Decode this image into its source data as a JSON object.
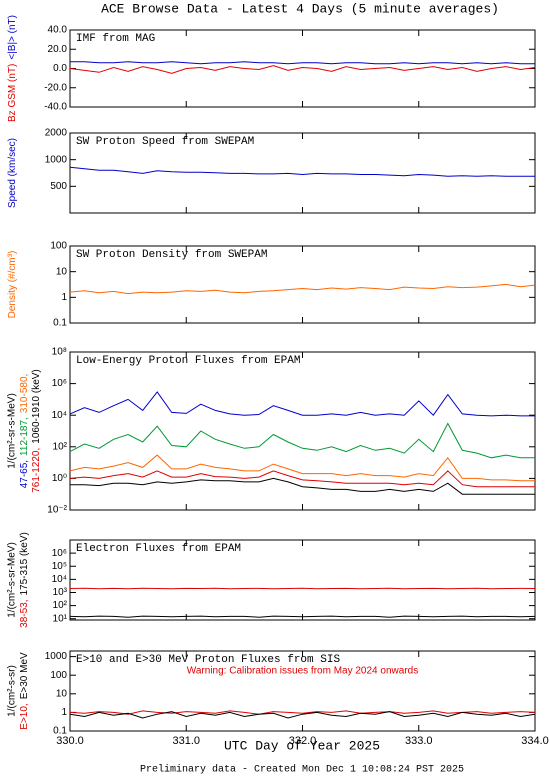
{
  "title": "ACE Browse Data - Latest 4 Days (5 minute averages)",
  "xlabel": "UTC Day of Year 2025",
  "footer": "Preliminary data - Created Mon Dec  1 10:08:24 PST 2025",
  "chart_data": [
    {
      "type": "line",
      "title": "IMF from MAG",
      "x": [
        330.0,
        330.125,
        330.25,
        330.375,
        330.5,
        330.625,
        330.75,
        330.875,
        331.0,
        331.125,
        331.25,
        331.375,
        331.5,
        331.625,
        331.75,
        331.875,
        332.0,
        332.125,
        332.25,
        332.375,
        332.5,
        332.625,
        332.75,
        332.875,
        333.0,
        333.125,
        333.25,
        333.375,
        333.5,
        333.625,
        333.75,
        333.875,
        334.0
      ],
      "series": [
        {
          "name": "Bz GSM (nT)",
          "color": "#e00000",
          "values": [
            0,
            -2,
            -4,
            1,
            -3,
            2,
            -1,
            -5,
            0,
            1,
            -2,
            2,
            0,
            -1,
            3,
            -2,
            1,
            0,
            -3,
            2,
            -1,
            0,
            1,
            -2,
            0,
            2,
            -1,
            1,
            -3,
            0,
            2,
            -1,
            1
          ]
        },
        {
          "name": "<|B|> (nT)",
          "color": "#0000cc",
          "values": [
            7,
            7,
            6,
            6,
            7,
            6,
            6,
            7,
            6,
            5,
            6,
            6,
            7,
            6,
            6,
            5,
            6,
            6,
            5,
            6,
            6,
            5,
            5,
            6,
            5,
            6,
            6,
            5,
            6,
            5,
            6,
            5,
            5
          ]
        }
      ],
      "log": false,
      "ylim": [
        -40,
        40
      ],
      "yticks": [
        {
          "value": -40,
          "label": "-40.0"
        },
        {
          "value": -20,
          "label": "-20.0"
        },
        {
          "value": 0,
          "label": "0.0"
        },
        {
          "value": 20,
          "label": "20.0"
        },
        {
          "value": 40,
          "label": "40.0"
        }
      ]
    },
    {
      "type": "line",
      "title": "SW Proton Speed from SWEPAM",
      "x": [
        330.0,
        330.125,
        330.25,
        330.375,
        330.5,
        330.625,
        330.75,
        330.875,
        331.0,
        331.125,
        331.25,
        331.375,
        331.5,
        331.625,
        331.75,
        331.875,
        332.0,
        332.125,
        332.25,
        332.375,
        332.5,
        332.625,
        332.75,
        332.875,
        333.0,
        333.125,
        333.25,
        333.375,
        333.5,
        333.625,
        333.75,
        333.875,
        334.0
      ],
      "series": [
        {
          "name": "Speed (km/sec)",
          "color": "#0000cc",
          "values": [
            820,
            790,
            760,
            760,
            730,
            700,
            750,
            730,
            720,
            720,
            710,
            700,
            700,
            690,
            690,
            700,
            680,
            700,
            690,
            690,
            680,
            680,
            670,
            660,
            680,
            670,
            650,
            660,
            650,
            660,
            650,
            650,
            650
          ]
        }
      ],
      "log": true,
      "ylim": [
        250,
        2000
      ],
      "yticks": [
        500,
        1000,
        2000
      ]
    },
    {
      "type": "line",
      "title": "SW Proton Density from SWEPAM",
      "x": [
        330.0,
        330.125,
        330.25,
        330.375,
        330.5,
        330.625,
        330.75,
        330.875,
        331.0,
        331.125,
        331.25,
        331.375,
        331.5,
        331.625,
        331.75,
        331.875,
        332.0,
        332.125,
        332.25,
        332.375,
        332.5,
        332.625,
        332.75,
        332.875,
        333.0,
        333.125,
        333.25,
        333.375,
        333.5,
        333.625,
        333.75,
        333.875,
        334.0
      ],
      "series": [
        {
          "name": "Density (#/cm³)",
          "color": "#ff6600",
          "values": [
            1.6,
            1.8,
            1.5,
            1.7,
            1.4,
            1.6,
            1.5,
            1.6,
            1.8,
            1.7,
            1.9,
            1.6,
            1.5,
            1.7,
            1.8,
            2.0,
            2.2,
            2.0,
            2.3,
            2.1,
            2.4,
            2.2,
            2.0,
            2.5,
            2.3,
            2.2,
            2.6,
            2.4,
            2.5,
            2.8,
            3.2,
            2.6,
            3.0
          ]
        }
      ],
      "log": true,
      "ylim": [
        0.1,
        100
      ],
      "yticks": [
        0.1,
        1,
        10,
        100
      ]
    },
    {
      "type": "line",
      "title": "Low-Energy Proton Fluxes from EPAM",
      "ylabel": "1/(cm²-sr-s-MeV)",
      "x": [
        330.0,
        330.125,
        330.25,
        330.375,
        330.5,
        330.625,
        330.75,
        330.875,
        331.0,
        331.125,
        331.25,
        331.375,
        331.5,
        331.625,
        331.75,
        331.875,
        332.0,
        332.125,
        332.25,
        332.375,
        332.5,
        332.625,
        332.75,
        332.875,
        333.0,
        333.125,
        333.25,
        333.375,
        333.5,
        333.625,
        333.75,
        333.875,
        334.0
      ],
      "series": [
        {
          "name": "47-65,",
          "color": "#0000cc",
          "values": [
            12000,
            30000,
            15000,
            40000,
            100000,
            20000,
            300000,
            15000,
            13000,
            50000,
            20000,
            12000,
            10000,
            11000,
            40000,
            20000,
            10000,
            10000,
            12000,
            10000,
            15000,
            10000,
            12000,
            10000,
            80000,
            10000,
            200000,
            12000,
            10000,
            9000,
            10000,
            9000,
            9000
          ]
        },
        {
          "name": "112-187,",
          "color": "#009933",
          "values": [
            50,
            150,
            80,
            300,
            600,
            200,
            2000,
            120,
            100,
            1000,
            300,
            150,
            80,
            100,
            600,
            200,
            80,
            60,
            100,
            50,
            120,
            60,
            80,
            40,
            300,
            50,
            3000,
            60,
            40,
            20,
            30,
            20,
            20
          ]
        },
        {
          "name": "310-580,",
          "color": "#ff6600",
          "values": [
            3,
            5,
            4,
            6,
            10,
            5,
            30,
            4,
            4,
            8,
            5,
            4,
            3,
            3,
            8,
            4,
            2,
            2,
            2,
            1.5,
            2,
            1.5,
            1.5,
            1.2,
            2,
            1.5,
            20,
            1,
            1,
            0.8,
            0.8,
            0.7,
            0.7
          ]
        },
        {
          "name": "761-1220,",
          "color": "#e00000",
          "values": [
            1,
            1.2,
            1,
            1.5,
            2,
            1.2,
            3,
            1.2,
            1.2,
            2,
            1.3,
            1.2,
            1,
            1.2,
            3,
            1.5,
            0.8,
            0.7,
            0.6,
            0.5,
            0.5,
            0.5,
            0.5,
            0.4,
            0.5,
            0.4,
            3,
            0.4,
            0.3,
            0.3,
            0.3,
            0.3,
            0.3
          ]
        },
        {
          "name": "1060-1910 (keV)",
          "color": "#000000",
          "values": [
            0.4,
            0.4,
            0.35,
            0.5,
            0.5,
            0.4,
            0.6,
            0.5,
            0.6,
            0.8,
            0.7,
            0.7,
            0.6,
            0.6,
            1.0,
            0.6,
            0.3,
            0.25,
            0.2,
            0.2,
            0.15,
            0.15,
            0.2,
            0.15,
            0.2,
            0.15,
            0.5,
            0.1,
            0.1,
            0.1,
            0.1,
            0.1,
            0.1
          ]
        }
      ],
      "log": true,
      "ylim": [
        0.01,
        100000000
      ],
      "yticks": [
        {
          "value": 0.01,
          "label": "10⁻²"
        },
        {
          "value": 1,
          "label": "10⁰"
        },
        {
          "value": 100,
          "label": "10²"
        },
        {
          "value": 10000,
          "label": "10⁴"
        },
        {
          "value": 1000000,
          "label": "10⁶"
        },
        {
          "value": 100000000,
          "label": "10⁸"
        }
      ]
    },
    {
      "type": "line",
      "title": "Electron Fluxes from EPAM",
      "ylabel": "1/(cm²-s-sr-MeV)",
      "x": [
        330.0,
        330.125,
        330.25,
        330.375,
        330.5,
        330.625,
        330.75,
        330.875,
        331.0,
        331.125,
        331.25,
        331.375,
        331.5,
        331.625,
        331.75,
        331.875,
        332.0,
        332.125,
        332.25,
        332.375,
        332.5,
        332.625,
        332.75,
        332.875,
        333.0,
        333.125,
        333.25,
        333.375,
        333.5,
        333.625,
        333.75,
        333.875,
        334.0
      ],
      "series": [
        {
          "name": "38-53,",
          "color": "#e00000",
          "values": [
            2000,
            2100,
            1900,
            2050,
            1950,
            2100,
            2000,
            1900,
            2050,
            2000,
            2100,
            1950,
            2000,
            2050,
            1900,
            2000,
            2100,
            1950,
            2000,
            2050,
            1900,
            2000,
            2100,
            1950,
            2000,
            2050,
            1900,
            2000,
            2100,
            1950,
            2000,
            2050,
            2000
          ]
        },
        {
          "name": "175-315 (keV)",
          "color": "#000000",
          "values": [
            15,
            14,
            16,
            15,
            13,
            16,
            15,
            14,
            15,
            16,
            14,
            15,
            15,
            13,
            16,
            15,
            14,
            15,
            16,
            14,
            15,
            15,
            13,
            16,
            15,
            14,
            15,
            16,
            14,
            15,
            15,
            14,
            15
          ]
        }
      ],
      "log": true,
      "ylim": [
        8,
        10000000
      ],
      "yticks": [
        {
          "value": 10,
          "label": "10¹"
        },
        {
          "value": 100,
          "label": "10²"
        },
        {
          "value": 1000,
          "label": "10³"
        },
        {
          "value": 10000,
          "label": "10⁴"
        },
        {
          "value": 100000,
          "label": "10⁵"
        },
        {
          "value": 1000000,
          "label": "10⁶"
        }
      ]
    },
    {
      "type": "line",
      "title": "E>10 and E>30 MeV Proton Fluxes from SIS",
      "ylabel": "1/(cm²-s-sr)",
      "annotation": "Warning: Calibration issues from May 2024 onwards",
      "x": [
        330.0,
        330.125,
        330.25,
        330.375,
        330.5,
        330.625,
        330.75,
        330.875,
        331.0,
        331.125,
        331.25,
        331.375,
        331.5,
        331.625,
        331.75,
        331.875,
        332.0,
        332.125,
        332.25,
        332.375,
        332.5,
        332.625,
        332.75,
        332.875,
        333.0,
        333.125,
        333.25,
        333.375,
        333.5,
        333.625,
        333.75,
        333.875,
        334.0
      ],
      "series": [
        {
          "name": "E>10,",
          "color": "#e00000",
          "values": [
            1.0,
            0.9,
            1.1,
            1.0,
            0.8,
            1.2,
            1.0,
            0.9,
            1.1,
            1.0,
            0.9,
            1.2,
            1.0,
            0.8,
            1.1,
            1.0,
            0.9,
            1.1,
            1.0,
            1.2,
            0.9,
            1.0,
            1.1,
            0.9,
            1.0,
            1.2,
            0.9,
            1.0,
            1.1,
            0.9,
            1.0,
            1.1,
            1.0
          ]
        },
        {
          "name": "E>30 MeV",
          "color": "#000000",
          "values": [
            0.8,
            0.6,
            1.0,
            0.7,
            0.9,
            0.5,
            0.8,
            1.1,
            0.6,
            0.9,
            0.7,
            1.0,
            0.6,
            0.8,
            0.9,
            0.5,
            0.8,
            1.0,
            0.7,
            0.6,
            0.9,
            0.8,
            1.1,
            0.6,
            0.7,
            0.9,
            0.6,
            1.0,
            0.8,
            0.7,
            0.9,
            0.6,
            0.8
          ]
        }
      ],
      "log": true,
      "ylim": [
        0.1,
        2000
      ],
      "yticks": [
        0.1,
        1,
        10,
        100,
        1000
      ],
      "xlim": [
        330,
        334
      ],
      "xticks": [
        {
          "value": 330,
          "label": "330.0"
        },
        {
          "value": 331,
          "label": "331.0"
        },
        {
          "value": 332,
          "label": "332.0"
        },
        {
          "value": 333,
          "label": "333.0"
        },
        {
          "value": 334,
          "label": "334.0"
        }
      ]
    }
  ]
}
